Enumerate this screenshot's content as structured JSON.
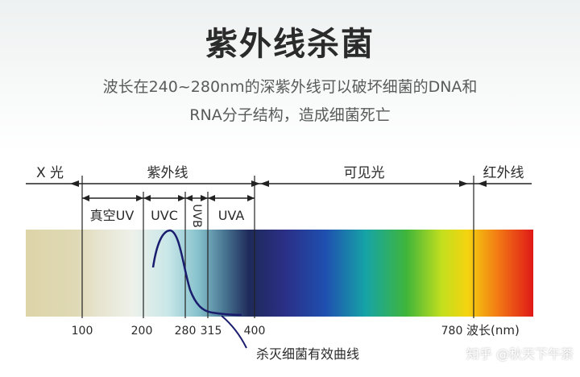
{
  "title": "紫外线杀菌",
  "subtitle_line1": "波长在240~280nm的深紫外线可以破坏细菌的DNA和",
  "subtitle_line2": "RNA分子结构，造成细菌死亡",
  "regions": {
    "xray": "X 光",
    "uv": "紫外线",
    "visible": "可见光",
    "infrared": "红外线"
  },
  "subregions": {
    "vacuum_uv": "真空UV",
    "uvc": "UVC",
    "uvb": "UVB",
    "uva": "UVA"
  },
  "ticks": [
    "100",
    "200",
    "280",
    "315",
    "400",
    "780"
  ],
  "axis_unit": "波长(nm)",
  "curve_label": "杀灭细菌有效曲线",
  "watermark": "知乎 @秋天下午茶"
}
